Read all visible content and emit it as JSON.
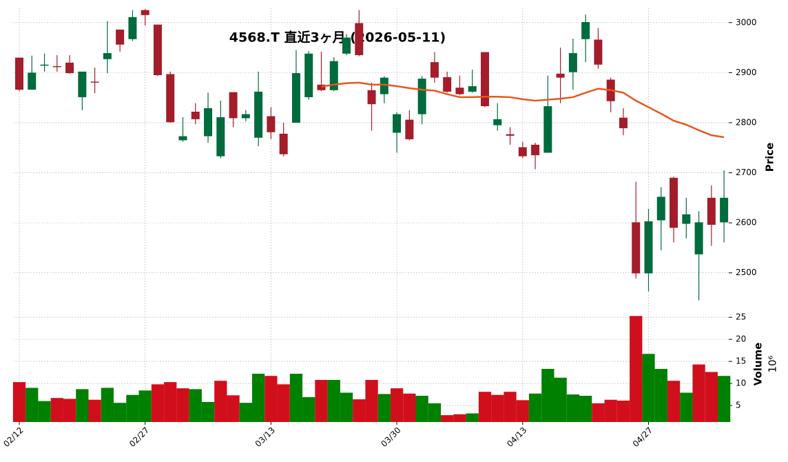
{
  "chart_data": {
    "type": "candlestick",
    "title": "4568.T  直近3ヶ月 (2026-05-11)",
    "y_label": "Price",
    "categories": [
      "02/12",
      null,
      null,
      null,
      null,
      null,
      null,
      null,
      null,
      null,
      "02/27",
      null,
      null,
      null,
      null,
      null,
      null,
      null,
      null,
      null,
      "03/13",
      null,
      null,
      null,
      null,
      null,
      null,
      null,
      null,
      null,
      "03/30",
      null,
      null,
      null,
      null,
      null,
      null,
      null,
      null,
      null,
      "04/13",
      null,
      null,
      null,
      null,
      null,
      null,
      null,
      null,
      null,
      "04/27",
      null,
      null,
      null,
      null,
      null,
      null
    ],
    "open": [
      2930,
      2866,
      2914,
      2913,
      2920,
      2851,
      2882,
      2927,
      2986,
      2967,
      3025,
      2996,
      2897,
      2765,
      2822,
      2773,
      2733,
      2861,
      2809,
      2770,
      2813,
      2778,
      2800,
      2851,
      2876,
      2865,
      2938,
      2999,
      2865,
      2857,
      2780,
      2806,
      2817,
      2921,
      2891,
      2870,
      2862,
      2941,
      2795,
      2777,
      2751,
      2756,
      2740,
      2898,
      2901,
      2967,
      2966,
      2886,
      2810,
      2601,
      2499,
      2605,
      2690,
      2598,
      2537,
      2650,
      2601
    ],
    "high": [
      2930,
      2934,
      2938,
      2935,
      2935,
      2902,
      2910,
      3003,
      2986,
      3025,
      3027,
      2996,
      2902,
      2811,
      2839,
      2860,
      2844,
      2861,
      2825,
      2902,
      2831,
      2800,
      2945,
      2943,
      2942,
      2931,
      2977,
      3025,
      2880,
      2893,
      2821,
      2825,
      2893,
      2941,
      2902,
      2894,
      2906,
      2941,
      2839,
      2791,
      2762,
      2760,
      2894,
      2950,
      2968,
      3016,
      2989,
      2890,
      2829,
      2682,
      2628,
      2671,
      2692,
      2650,
      2623,
      2675,
      2705
    ],
    "low": [
      2863,
      2866,
      2902,
      2902,
      2898,
      2825,
      2859,
      2899,
      2942,
      2963,
      2994,
      2893,
      2800,
      2762,
      2797,
      2760,
      2729,
      2791,
      2803,
      2753,
      2767,
      2733,
      2800,
      2846,
      2863,
      2863,
      2935,
      2933,
      2784,
      2839,
      2740,
      2765,
      2797,
      2880,
      2860,
      2855,
      2860,
      2831,
      2784,
      2756,
      2729,
      2707,
      2740,
      2839,
      2866,
      2921,
      2908,
      2821,
      2775,
      2489,
      2463,
      2545,
      2561,
      2569,
      2445,
      2554,
      2561
    ],
    "close": [
      2866,
      2900,
      2916,
      2911,
      2899,
      2902,
      2880,
      2939,
      2956,
      3011,
      3015,
      2895,
      2801,
      2773,
      2807,
      2829,
      2811,
      2809,
      2817,
      2862,
      2781,
      2737,
      2899,
      2938,
      2865,
      2923,
      2970,
      2935,
      2837,
      2890,
      2817,
      2767,
      2888,
      2890,
      2862,
      2857,
      2873,
      2833,
      2807,
      2774,
      2733,
      2735,
      2833,
      2890,
      2939,
      3001,
      2916,
      2843,
      2789,
      2499,
      2603,
      2652,
      2590,
      2617,
      2601,
      2596,
      2650
    ],
    "up_color": "#006b3c",
    "down_color": "#a31d2b",
    "ylim": [
      2439,
      3030
    ],
    "yticks": [
      2500,
      2600,
      2700,
      2800,
      2900,
      3000
    ],
    "grid": true,
    "ma": {
      "color": "#e8561e",
      "values": [
        null,
        null,
        null,
        null,
        null,
        null,
        null,
        null,
        null,
        null,
        null,
        null,
        null,
        null,
        null,
        null,
        null,
        null,
        null,
        null,
        null,
        null,
        null,
        null,
        2872,
        2876,
        2879,
        2880,
        2876,
        2876,
        2873,
        2869,
        2866,
        2864,
        2857,
        2851,
        2851,
        2852,
        2852,
        2851,
        2847,
        2844,
        2846,
        2848,
        2851,
        2860,
        2868,
        2865,
        2860,
        2844,
        2831,
        2818,
        2804,
        2796,
        2785,
        2775,
        2771
      ]
    },
    "volume": {
      "label": "Volume",
      "offset_label": "10⁶",
      "up_color": "#008000",
      "down_color": "#d10f1c",
      "ylim": [
        1.25,
        26.9
      ],
      "yticks": [
        5,
        10,
        15,
        20,
        25
      ],
      "values": [
        10.3,
        9.0,
        6.0,
        6.7,
        6.5,
        8.7,
        6.3,
        9.0,
        5.6,
        7.4,
        8.4,
        9.8,
        10.3,
        8.9,
        8.7,
        5.8,
        10.6,
        7.3,
        5.6,
        12.2,
        11.7,
        9.8,
        12.2,
        6.9,
        10.8,
        10.8,
        7.9,
        6.4,
        10.8,
        7.6,
        8.9,
        7.7,
        7.2,
        5.5,
        2.8,
        3.0,
        3.2,
        8.1,
        7.4,
        8.1,
        6.2,
        7.7,
        13.3,
        11.3,
        7.5,
        7.2,
        5.5,
        6.3,
        6.1,
        25.3,
        16.7,
        13.3,
        10.6,
        7.9,
        14.3,
        12.6,
        11.7
      ]
    }
  }
}
